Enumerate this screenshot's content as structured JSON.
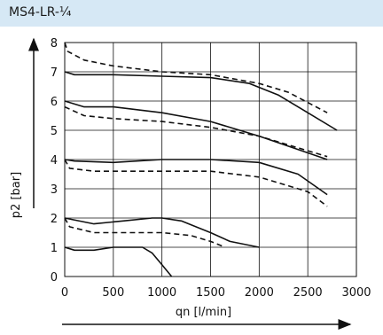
{
  "header": {
    "title": "MS4-LR-¼"
  },
  "chart_data": {
    "type": "line",
    "title": "",
    "xlabel": "qn [l/min]",
    "ylabel": "p2 [bar]",
    "xlim": [
      0,
      3000
    ],
    "ylim": [
      0,
      8
    ],
    "x_ticks": [
      "0",
      "500",
      "1000",
      "1500",
      "2000",
      "2500",
      "3000"
    ],
    "y_ticks": [
      "0",
      "1",
      "2",
      "3",
      "4",
      "5",
      "6",
      "7",
      "8"
    ],
    "grid": true,
    "series": [
      {
        "style": "solid",
        "x": [
          0,
          100,
          500,
          1000,
          1500,
          1900,
          2200,
          2500,
          2800
        ],
        "y": [
          7.0,
          6.9,
          6.9,
          6.85,
          6.8,
          6.6,
          6.2,
          5.6,
          5.0
        ]
      },
      {
        "style": "dashed",
        "x": [
          0,
          30,
          200,
          500,
          1000,
          1500,
          2000,
          2300,
          2700
        ],
        "y": [
          8.0,
          7.7,
          7.4,
          7.2,
          7.0,
          6.9,
          6.6,
          6.3,
          5.6
        ]
      },
      {
        "style": "solid",
        "x": [
          0,
          200,
          500,
          1000,
          1500,
          2000,
          2700
        ],
        "y": [
          6.0,
          5.8,
          5.8,
          5.6,
          5.3,
          4.8,
          4.0
        ]
      },
      {
        "style": "dashed",
        "x": [
          0,
          200,
          500,
          1000,
          1500,
          2000,
          2500,
          2700
        ],
        "y": [
          5.8,
          5.5,
          5.4,
          5.3,
          5.1,
          4.8,
          4.3,
          4.1
        ]
      },
      {
        "style": "solid",
        "x": [
          0,
          100,
          500,
          1000,
          1500,
          2000,
          2400,
          2700
        ],
        "y": [
          4.0,
          3.95,
          3.9,
          4.0,
          4.0,
          3.9,
          3.5,
          2.8
        ]
      },
      {
        "style": "dashed",
        "x": [
          0,
          50,
          300,
          1000,
          1500,
          2000,
          2500,
          2700
        ],
        "y": [
          4.0,
          3.7,
          3.6,
          3.6,
          3.6,
          3.4,
          2.9,
          2.4
        ]
      },
      {
        "style": "solid",
        "x": [
          0,
          300,
          600,
          900,
          1000,
          1200,
          1500,
          1700,
          2000
        ],
        "y": [
          2.0,
          1.8,
          1.9,
          2.0,
          2.0,
          1.9,
          1.5,
          1.2,
          1.0
        ]
      },
      {
        "style": "dashed",
        "x": [
          0,
          50,
          300,
          1000,
          1300,
          1500,
          1650
        ],
        "y": [
          2.0,
          1.7,
          1.5,
          1.5,
          1.4,
          1.2,
          1.0
        ]
      },
      {
        "style": "solid",
        "x": [
          0,
          100,
          300,
          500,
          800,
          900,
          1000,
          1100
        ],
        "y": [
          1.0,
          0.9,
          0.9,
          1.0,
          1.0,
          0.8,
          0.4,
          0.0
        ]
      }
    ]
  }
}
